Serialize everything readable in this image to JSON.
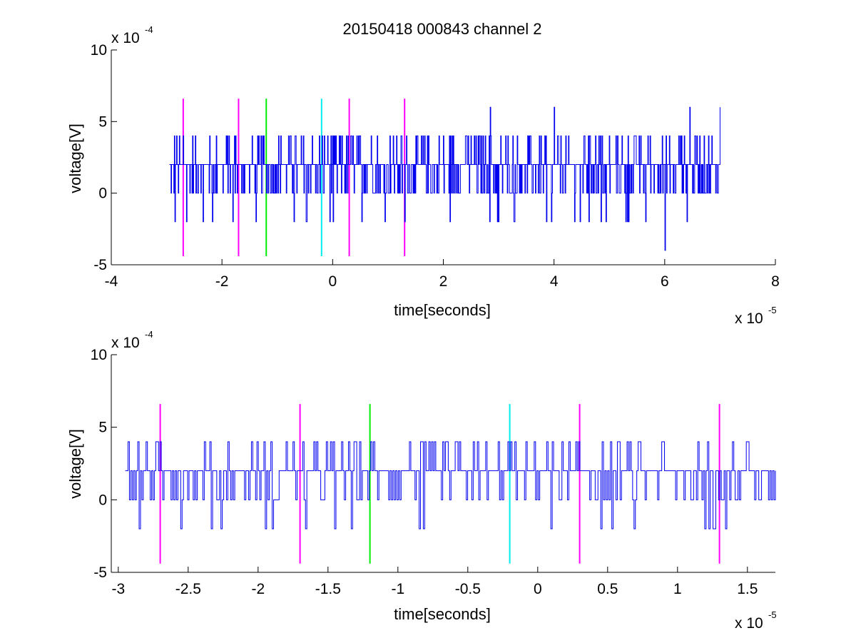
{
  "chart_data": [
    {
      "type": "line",
      "title": "20150418 000843 channel 2",
      "xlabel": "time[seconds]",
      "ylabel": "voltage[V]",
      "x_exponent_label": "x 10",
      "x_exponent_power": "-5",
      "y_exponent_label": "x 10",
      "y_exponent_power": "-4",
      "xlim": [
        -4,
        8
      ],
      "ylim": [
        -5,
        10
      ],
      "x_ticks": [
        -4,
        -2,
        0,
        2,
        4,
        6,
        8
      ],
      "x_tick_labels": [
        "-4",
        "-2",
        "0",
        "2",
        "4",
        "6",
        "8"
      ],
      "y_ticks": [
        -5,
        0,
        5,
        10
      ],
      "y_tick_labels": [
        "-5",
        "0",
        "5",
        "10"
      ],
      "signal": {
        "x_start": -2.95,
        "x_end": 7.0,
        "samples": 1000,
        "baseline_values": [
          0,
          2,
          4
        ],
        "extreme_peaks": [
          [
            -2.85,
            -2
          ],
          [
            -2.7,
            4
          ],
          [
            -1.8,
            -2
          ],
          [
            -1.75,
            4
          ],
          [
            -0.05,
            -2
          ],
          [
            2.85,
            6
          ],
          [
            4.0,
            6
          ],
          [
            6.0,
            -4
          ],
          [
            6.45,
            6
          ],
          [
            7.0,
            6
          ]
        ],
        "color": "#0000ee"
      },
      "markers": [
        {
          "x": -2.7,
          "color": "#ff00ff"
        },
        {
          "x": -1.7,
          "color": "#ff00ff"
        },
        {
          "x": -1.2,
          "color": "#00ee00"
        },
        {
          "x": -0.2,
          "color": "#00eeee"
        },
        {
          "x": 0.3,
          "color": "#ff00ff"
        },
        {
          "x": 1.3,
          "color": "#ff00ff"
        }
      ],
      "marker_range": [
        -4.4,
        6.6
      ]
    },
    {
      "type": "line",
      "title": "",
      "xlabel": "time[seconds]",
      "ylabel": "voltage[V]",
      "x_exponent_label": "x 10",
      "x_exponent_power": "-5",
      "y_exponent_label": "x 10",
      "y_exponent_power": "-4",
      "xlim": [
        -3.05,
        1.7
      ],
      "ylim": [
        -5,
        10
      ],
      "x_ticks": [
        -3,
        -2.5,
        -2,
        -1.5,
        -1,
        -0.5,
        0,
        0.5,
        1,
        1.5
      ],
      "x_tick_labels": [
        "-3",
        "-2.5",
        "-2",
        "-1.5",
        "-1",
        "-0.5",
        "0",
        "0.5",
        "1",
        "1.5"
      ],
      "y_ticks": [
        -5,
        0,
        5,
        10
      ],
      "y_tick_labels": [
        "-5",
        "0",
        "5",
        "10"
      ],
      "signal": {
        "x_start": -2.95,
        "x_end": 1.7,
        "samples": 470,
        "baseline_values": [
          0,
          2,
          4
        ],
        "extreme_peaks": [
          [
            -2.85,
            -2
          ],
          [
            -1.95,
            -2
          ],
          [
            -1.9,
            -2
          ],
          [
            -1.45,
            -2
          ],
          [
            -0.85,
            -2
          ],
          [
            0.45,
            -2
          ],
          [
            1.25,
            -2
          ]
        ],
        "color": "#0000ee"
      },
      "markers": [
        {
          "x": -2.7,
          "color": "#ff00ff"
        },
        {
          "x": -1.7,
          "color": "#ff00ff"
        },
        {
          "x": -1.2,
          "color": "#00ee00"
        },
        {
          "x": -0.2,
          "color": "#00eeee"
        },
        {
          "x": 0.3,
          "color": "#ff00ff"
        },
        {
          "x": 1.3,
          "color": "#ff00ff"
        }
      ],
      "marker_range": [
        -4.4,
        6.6
      ]
    }
  ]
}
